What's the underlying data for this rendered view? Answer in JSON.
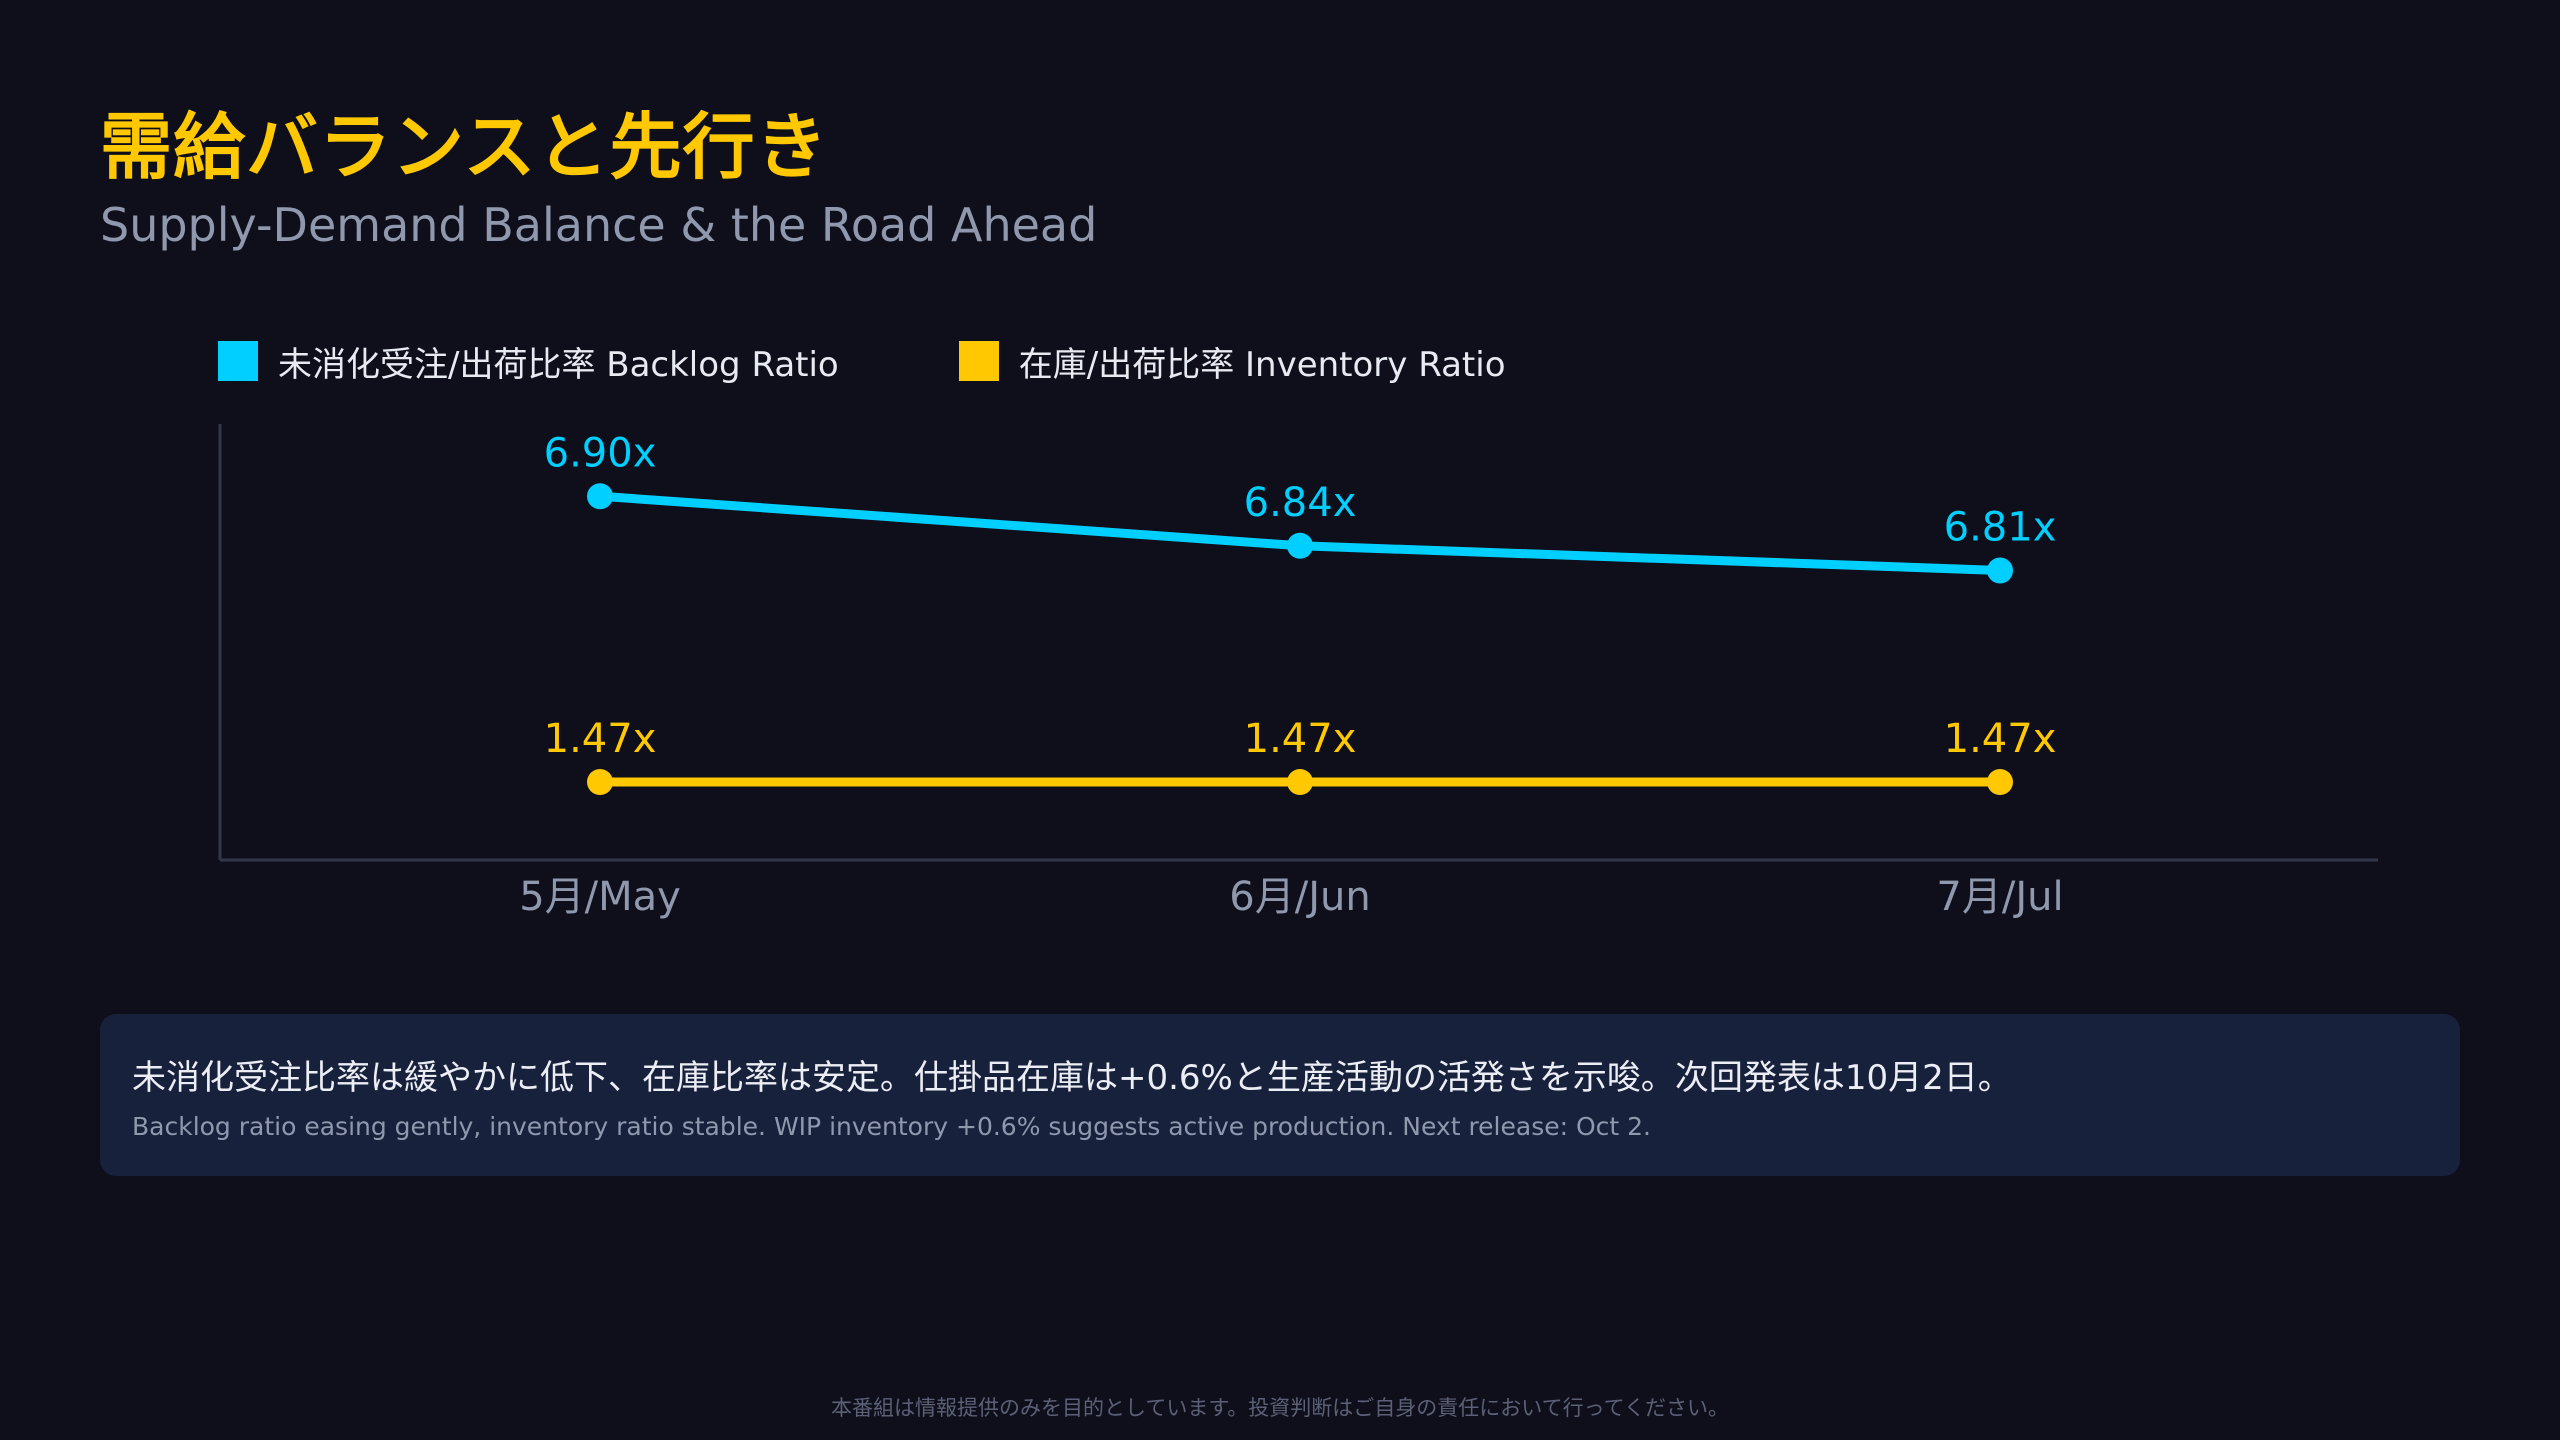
{
  "header": {
    "title": "需給バランスと先行き",
    "subtitle": "Supply-Demand Balance & the Road Ahead"
  },
  "legend": {
    "items": [
      {
        "label": "未消化受注/出荷比率 Backlog Ratio",
        "color": "#00cfff"
      },
      {
        "label": "在庫/出荷比率 Inventory Ratio",
        "color": "#ffc800"
      }
    ]
  },
  "chart_data": {
    "type": "line",
    "categories": [
      "5月/May",
      "6月/Jun",
      "7月/Jul"
    ],
    "series": [
      {
        "name": "未消化受注/出荷比率 Backlog Ratio",
        "color": "#00cfff",
        "values": [
          6.9,
          6.84,
          6.81
        ],
        "labels": [
          "6.90x",
          "6.84x",
          "6.81x"
        ]
      },
      {
        "name": "在庫/出荷比率 Inventory Ratio",
        "color": "#ffc800",
        "values": [
          1.47,
          1.47,
          1.47
        ],
        "labels": [
          "1.47x",
          "1.47x",
          "1.47x"
        ]
      }
    ],
    "grid": false,
    "legend_position": "top-left"
  },
  "note": {
    "ja": "未消化受注比率は緩やかに低下、在庫比率は安定。仕掛品在庫は+0.6%と生産活動の活発さを示唆。次回発表は10月2日。",
    "en": "Backlog ratio easing gently, inventory ratio stable. WIP inventory +0.6% suggests active production. Next release: Oct 2."
  },
  "footer": {
    "disclaimer": "本番組は情報提供のみを目的としています。投資判断はご自身の責任において行ってください。"
  }
}
